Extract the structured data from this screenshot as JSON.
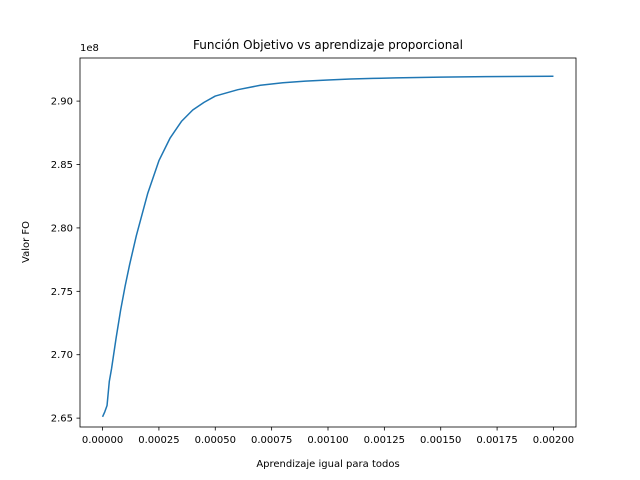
{
  "chart_data": {
    "type": "line",
    "title": "Función Objetivo vs aprendizaje proporcional",
    "xlabel": "Aprendizaje igual para todos",
    "ylabel": "Valor FO",
    "y_offset_label": "1e8",
    "xlim": [
      -0.0001,
      0.0021
    ],
    "ylim": [
      2.643,
      2.934
    ],
    "x_ticks": [
      0.0,
      0.00025,
      0.0005,
      0.00075,
      0.001,
      0.00125,
      0.0015,
      0.00175,
      0.002
    ],
    "x_tick_labels": [
      "0.00000",
      "0.00025",
      "0.00050",
      "0.00075",
      "0.00100",
      "0.00125",
      "0.00150",
      "0.00175",
      "0.00200"
    ],
    "y_ticks": [
      2.65,
      2.7,
      2.75,
      2.8,
      2.85,
      2.9
    ],
    "y_tick_labels": [
      "2.65",
      "2.70",
      "2.75",
      "2.80",
      "2.85",
      "2.90"
    ],
    "grid": false,
    "color": "#1f77b4",
    "series": [
      {
        "x": [
          0.0,
          1e-05,
          2e-05,
          3e-05,
          4e-05,
          6e-05,
          8e-05,
          0.0001,
          0.00012,
          0.00015,
          0.0002,
          0.00025,
          0.0003,
          0.00035,
          0.0004,
          0.00045,
          0.0005,
          0.0006,
          0.0007,
          0.0008,
          0.0009,
          0.001,
          0.0011,
          0.0012,
          0.0013,
          0.0014,
          0.0015,
          0.0016,
          0.0017,
          0.0018,
          0.0019,
          0.002
        ],
        "y": [
          2.651,
          2.655,
          2.66,
          2.679,
          2.689,
          2.713,
          2.735,
          2.754,
          2.771,
          2.794,
          2.827,
          2.853,
          2.871,
          2.884,
          2.893,
          2.899,
          2.904,
          2.909,
          2.9125,
          2.9145,
          2.9158,
          2.9167,
          2.9174,
          2.9179,
          2.9183,
          2.9186,
          2.9189,
          2.9191,
          2.9193,
          2.9194,
          2.9195,
          2.9196
        ]
      }
    ]
  }
}
